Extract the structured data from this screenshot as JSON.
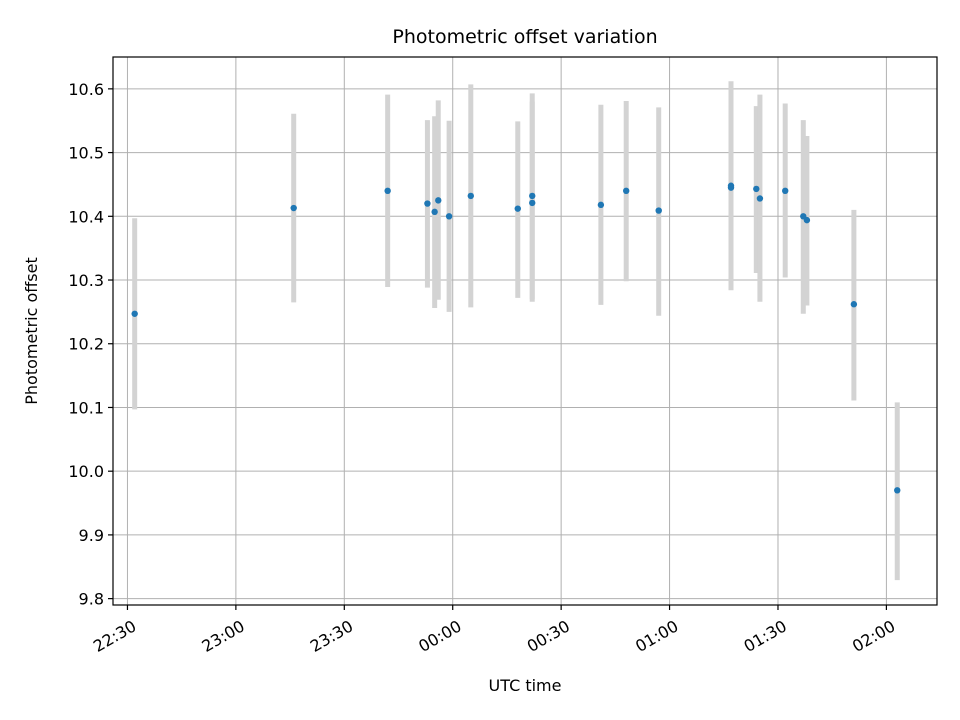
{
  "chart_data": {
    "type": "scatter",
    "title": "Photometric offset variation",
    "xlabel": "UTC time",
    "ylabel": "Photometric offset",
    "xlim": [
      "22:26",
      "02:14"
    ],
    "ylim": [
      9.79,
      10.65
    ],
    "xticks": [
      {
        "value": "22:30",
        "label": "22:30"
      },
      {
        "value": "23:00",
        "label": "23:00"
      },
      {
        "value": "23:30",
        "label": "23:30"
      },
      {
        "value": "00:00",
        "label": "00:00"
      },
      {
        "value": "00:30",
        "label": "00:30"
      },
      {
        "value": "01:00",
        "label": "01:00"
      },
      {
        "value": "01:30",
        "label": "01:30"
      },
      {
        "value": "02:00",
        "label": "02:00"
      }
    ],
    "yticks": [
      9.8,
      9.9,
      10.0,
      10.1,
      10.2,
      10.3,
      10.4,
      10.5,
      10.6
    ],
    "grid": true,
    "colors": {
      "point": "#1f77b4",
      "errorbar": "#d3d3d3"
    },
    "points": [
      {
        "x": "22:32",
        "y": 10.247,
        "lo": 10.097,
        "hi": 10.397
      },
      {
        "x": "23:16",
        "y": 10.413,
        "lo": 10.265,
        "hi": 10.561
      },
      {
        "x": "23:42",
        "y": 10.44,
        "lo": 10.289,
        "hi": 10.591
      },
      {
        "x": "23:53",
        "y": 10.42,
        "lo": 10.288,
        "hi": 10.551
      },
      {
        "x": "23:55",
        "y": 10.407,
        "lo": 10.256,
        "hi": 10.557
      },
      {
        "x": "23:56",
        "y": 10.425,
        "lo": 10.269,
        "hi": 10.582
      },
      {
        "x": "23:59",
        "y": 10.4,
        "lo": 10.25,
        "hi": 10.55
      },
      {
        "x": "00:05",
        "y": 10.432,
        "lo": 10.257,
        "hi": 10.607
      },
      {
        "x": "00:18",
        "y": 10.412,
        "lo": 10.272,
        "hi": 10.549
      },
      {
        "x": "00:22",
        "y": 10.421,
        "lo": 10.266,
        "hi": 10.58
      },
      {
        "x": "00:22",
        "y": 10.432,
        "lo": 10.27,
        "hi": 10.593
      },
      {
        "x": "00:41",
        "y": 10.418,
        "lo": 10.261,
        "hi": 10.575
      },
      {
        "x": "00:48",
        "y": 10.44,
        "lo": 10.298,
        "hi": 10.581
      },
      {
        "x": "00:57",
        "y": 10.409,
        "lo": 10.244,
        "hi": 10.571
      },
      {
        "x": "01:17",
        "y": 10.448,
        "lo": 10.284,
        "hi": 10.612
      },
      {
        "x": "01:17",
        "y": 10.445,
        "lo": 10.301,
        "hi": 10.589
      },
      {
        "x": "01:24",
        "y": 10.443,
        "lo": 10.311,
        "hi": 10.573
      },
      {
        "x": "01:25",
        "y": 10.428,
        "lo": 10.266,
        "hi": 10.591
      },
      {
        "x": "01:32",
        "y": 10.44,
        "lo": 10.304,
        "hi": 10.577
      },
      {
        "x": "01:37",
        "y": 10.4,
        "lo": 10.247,
        "hi": 10.551
      },
      {
        "x": "01:38",
        "y": 10.394,
        "lo": 10.26,
        "hi": 10.526
      },
      {
        "x": "01:51",
        "y": 10.262,
        "lo": 10.111,
        "hi": 10.41
      },
      {
        "x": "02:03",
        "y": 9.97,
        "lo": 9.829,
        "hi": 10.108
      }
    ]
  }
}
